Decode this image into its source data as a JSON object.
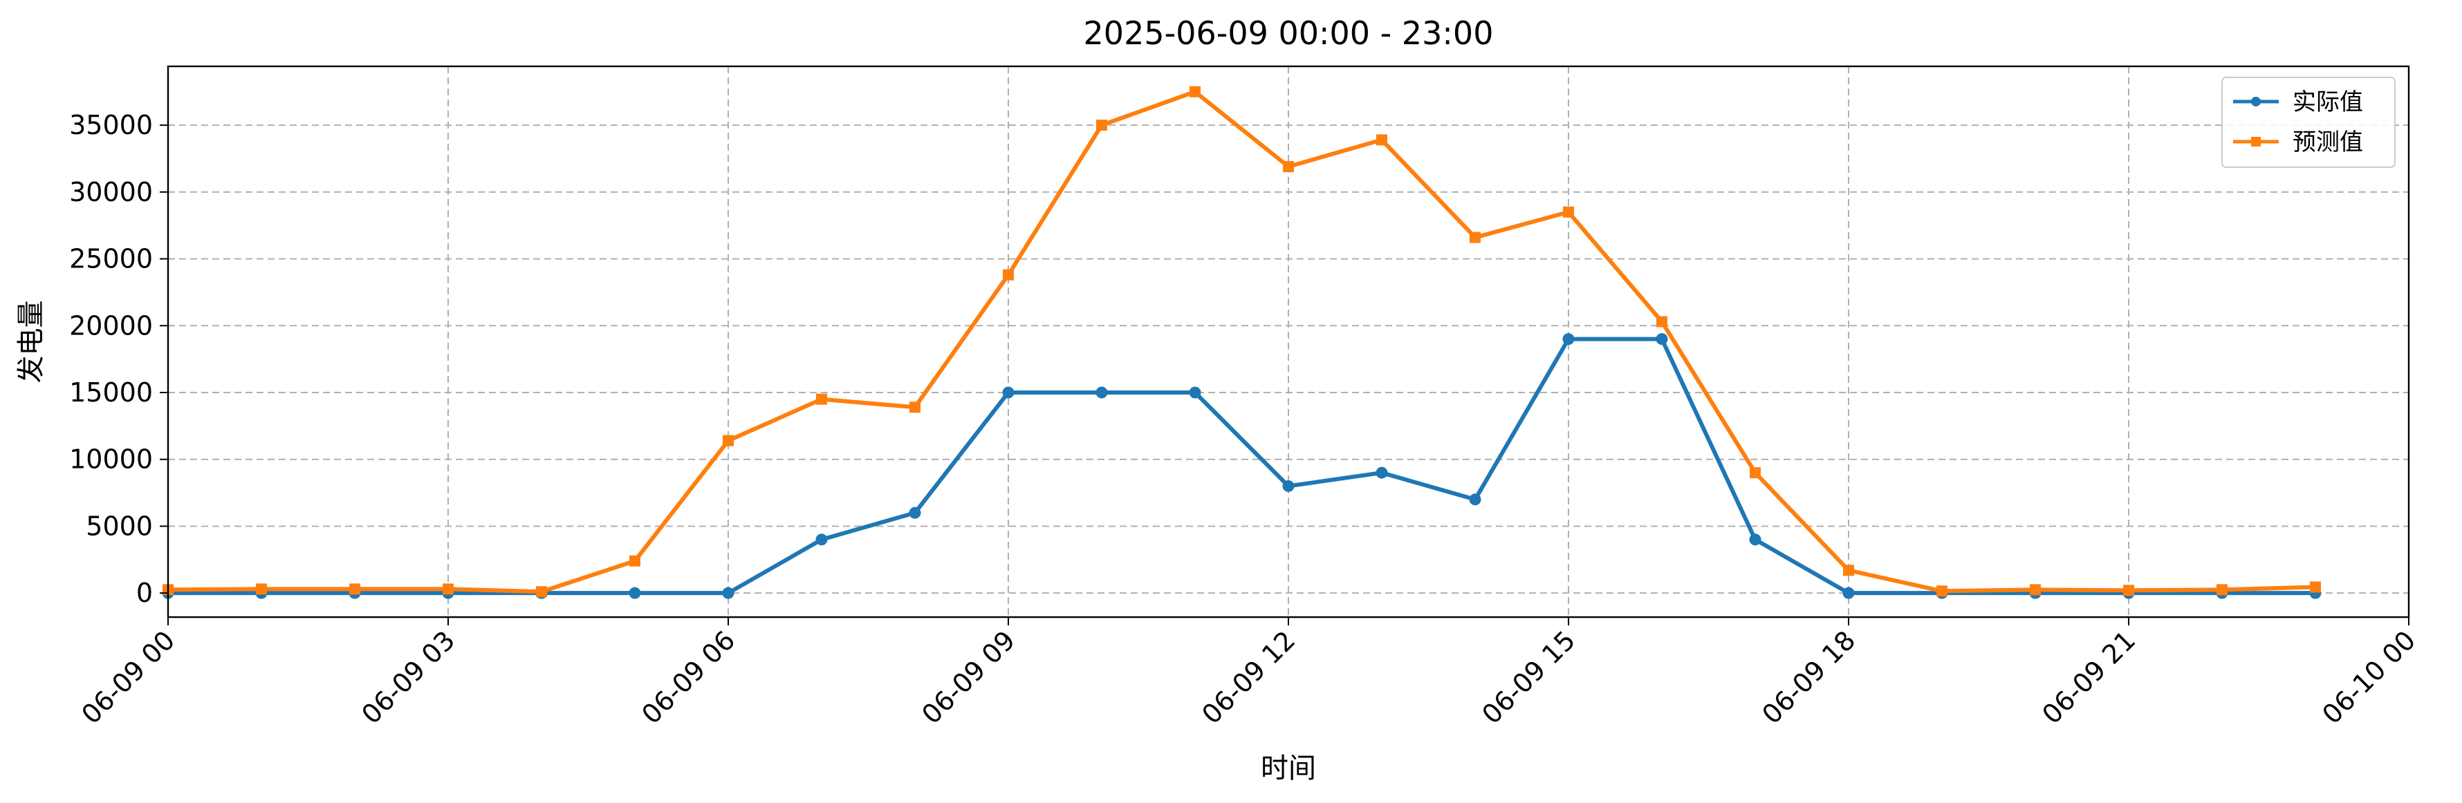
{
  "chart_data": {
    "type": "line",
    "title": "2025-06-09 00:00 - 23:00",
    "xlabel": "时间",
    "ylabel": "发电量",
    "x": [
      "06-09 00",
      "06-09 01",
      "06-09 02",
      "06-09 03",
      "06-09 04",
      "06-09 05",
      "06-09 06",
      "06-09 07",
      "06-09 08",
      "06-09 09",
      "06-09 10",
      "06-09 11",
      "06-09 12",
      "06-09 13",
      "06-09 14",
      "06-09 15",
      "06-09 16",
      "06-09 17",
      "06-09 18",
      "06-09 19",
      "06-09 20",
      "06-09 21",
      "06-09 22",
      "06-09 23"
    ],
    "xticks": [
      "06-09 00",
      "06-09 03",
      "06-09 06",
      "06-09 09",
      "06-09 12",
      "06-09 15",
      "06-09 18",
      "06-09 21",
      "06-10 00"
    ],
    "xlim": [
      "06-09 00",
      "06-10 00"
    ],
    "yticks": [
      0,
      5000,
      10000,
      15000,
      20000,
      25000,
      30000,
      35000
    ],
    "ylim": [
      -1800,
      39400
    ],
    "grid": true,
    "legend_position": "top-right",
    "series": [
      {
        "name": "实际值",
        "color": "#1f77b4",
        "marker": "circle",
        "values": [
          0,
          0,
          0,
          0,
          0,
          0,
          0,
          4000,
          6000,
          15000,
          15000,
          15000,
          8000,
          9000,
          7000,
          19000,
          19000,
          4000,
          0,
          0,
          0,
          0,
          0,
          0
        ]
      },
      {
        "name": "预测值",
        "color": "#ff7f0e",
        "marker": "square",
        "values": [
          250,
          300,
          300,
          300,
          100,
          2400,
          11400,
          14500,
          13900,
          23800,
          35000,
          37500,
          31900,
          33900,
          26600,
          28500,
          20300,
          9000,
          1700,
          150,
          250,
          200,
          250,
          450
        ]
      }
    ]
  }
}
